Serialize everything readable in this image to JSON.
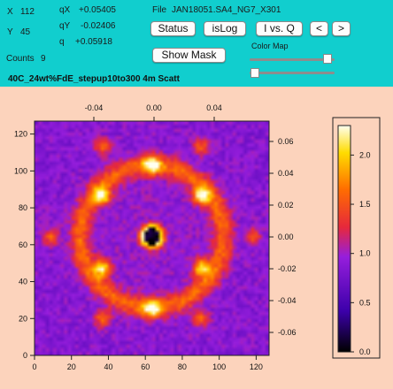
{
  "readout": {
    "x_label": "X",
    "x_value": "112",
    "y_label": "Y",
    "y_value": "45",
    "counts_label": "Counts",
    "counts_value": "9",
    "qx_label": "qX",
    "qx_value": "+0.05405",
    "qy_label": "qY",
    "qy_value": "-0.02406",
    "q_label": "q",
    "q_value": "+0.05918",
    "file_label": "File",
    "file_value": "JAN18051.SA4_NG7_X301"
  },
  "buttons": {
    "status": "Status",
    "islog": "isLog",
    "ivsq": "I vs. Q",
    "prev": "<",
    "next": ">",
    "show_mask": "Show Mask"
  },
  "colormap": {
    "label": "Color Map",
    "slider1": 0.92,
    "slider2": 0.03
  },
  "sample_title": "40C_24wt%FdE_stepup10to300 4m Scatt",
  "colors": {
    "panel": "#11cece",
    "background": "#fcd3bc"
  },
  "chart_data": [
    {
      "type": "heatmap",
      "title": "",
      "x_range": [
        0,
        127
      ],
      "y_range": [
        0,
        127
      ],
      "x_ticks": [
        "0",
        "20",
        "40",
        "60",
        "80",
        "100",
        "120"
      ],
      "y_ticks": [
        "0",
        "20",
        "40",
        "60",
        "80",
        "100",
        "120"
      ],
      "top_ticks": [
        "-0.04",
        "0.00",
        "0.04"
      ],
      "right_ticks": [
        "0.06",
        "0.04",
        "0.02",
        "0.00",
        "-0.02",
        "-0.04",
        "-0.06"
      ],
      "beam_center": [
        64,
        64
      ],
      "ring_radius": 39,
      "peaks": [
        {
          "x": 64,
          "y": 103
        },
        {
          "x": 64,
          "y": 25
        },
        {
          "x": 37,
          "y": 86
        },
        {
          "x": 91,
          "y": 86
        },
        {
          "x": 37,
          "y": 47
        },
        {
          "x": 91,
          "y": 47
        },
        {
          "x": 119,
          "y": 64
        },
        {
          "x": 9,
          "y": 64
        },
        {
          "x": 37,
          "y": 113
        },
        {
          "x": 91,
          "y": 113
        },
        {
          "x": 37,
          "y": 19
        },
        {
          "x": 91,
          "y": 19
        }
      ]
    },
    {
      "type": "colorbar",
      "range": [
        0.0,
        2.3
      ],
      "ticks": [
        "0.0",
        "0.5",
        "1.0",
        "1.5",
        "2.0"
      ]
    }
  ]
}
